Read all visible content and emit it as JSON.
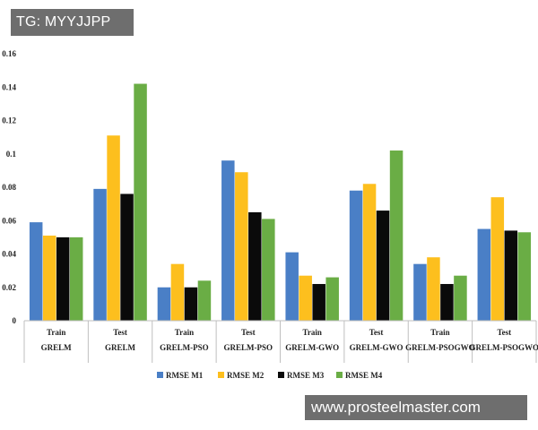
{
  "watermarks": {
    "top_left": "TG: MYYJJPP",
    "bottom_right": "www.prosteelmaster.com"
  },
  "chart_data": {
    "type": "bar",
    "title": "",
    "xlabel": "",
    "ylabel": "",
    "ylim": [
      0,
      0.16
    ],
    "yticks": [
      0,
      0.02,
      0.04,
      0.06,
      0.08,
      0.1,
      0.12,
      0.14,
      0.16
    ],
    "ytick_labels": [
      "0",
      "0.02",
      "0.04",
      "0.06",
      "0.08",
      "0.1",
      "0.12",
      "0.14",
      "0.16"
    ],
    "grid": false,
    "legend_position": "bottom",
    "categories": [
      {
        "phase": "Train",
        "model": "GRELM"
      },
      {
        "phase": "Test",
        "model": "GRELM"
      },
      {
        "phase": "Train",
        "model": "GRELM-PSO"
      },
      {
        "phase": "Test",
        "model": "GRELM-PSO"
      },
      {
        "phase": "Train",
        "model": "GRELM-GWO"
      },
      {
        "phase": "Test",
        "model": "GRELM-GWO"
      },
      {
        "phase": "Train",
        "model": "GRELM-PSOGWO"
      },
      {
        "phase": "Test",
        "model": "GRELM-PSOGWO"
      }
    ],
    "series": [
      {
        "name": "RMSE M1",
        "color": "#4a7fc6",
        "values": [
          0.059,
          0.079,
          0.02,
          0.096,
          0.041,
          0.078,
          0.034,
          0.055
        ]
      },
      {
        "name": "RMSE M2",
        "color": "#fdbf1e",
        "values": [
          0.051,
          0.111,
          0.034,
          0.089,
          0.027,
          0.082,
          0.038,
          0.074
        ]
      },
      {
        "name": "RMSE M3",
        "color": "#0a0a0a",
        "values": [
          0.05,
          0.076,
          0.02,
          0.065,
          0.022,
          0.066,
          0.022,
          0.054
        ]
      },
      {
        "name": "RMSE M4",
        "color": "#6aad45",
        "values": [
          0.05,
          0.142,
          0.024,
          0.061,
          0.026,
          0.102,
          0.027,
          0.053
        ]
      }
    ]
  }
}
